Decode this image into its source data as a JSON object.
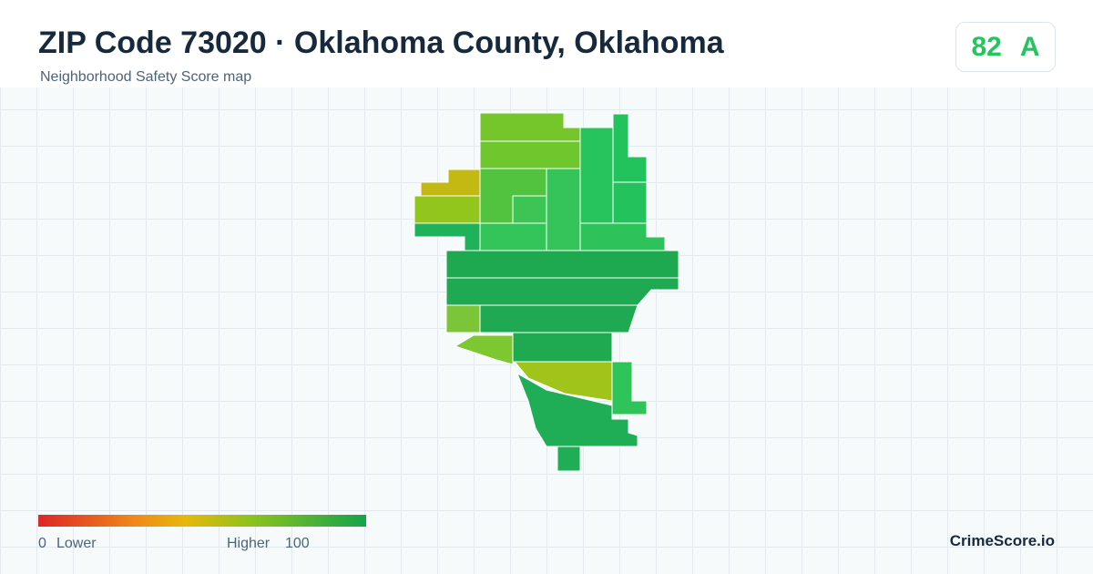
{
  "header": {
    "title": "ZIP Code 73020 · Oklahoma County, Oklahoma",
    "subtitle": "Neighborhood Safety Score map"
  },
  "badge": {
    "score": "82",
    "grade": "A"
  },
  "legend": {
    "min": "0",
    "min_label": "Lower",
    "max_label": "Higher",
    "max": "100"
  },
  "footer": {
    "brand": "CrimeScore.io"
  }
}
